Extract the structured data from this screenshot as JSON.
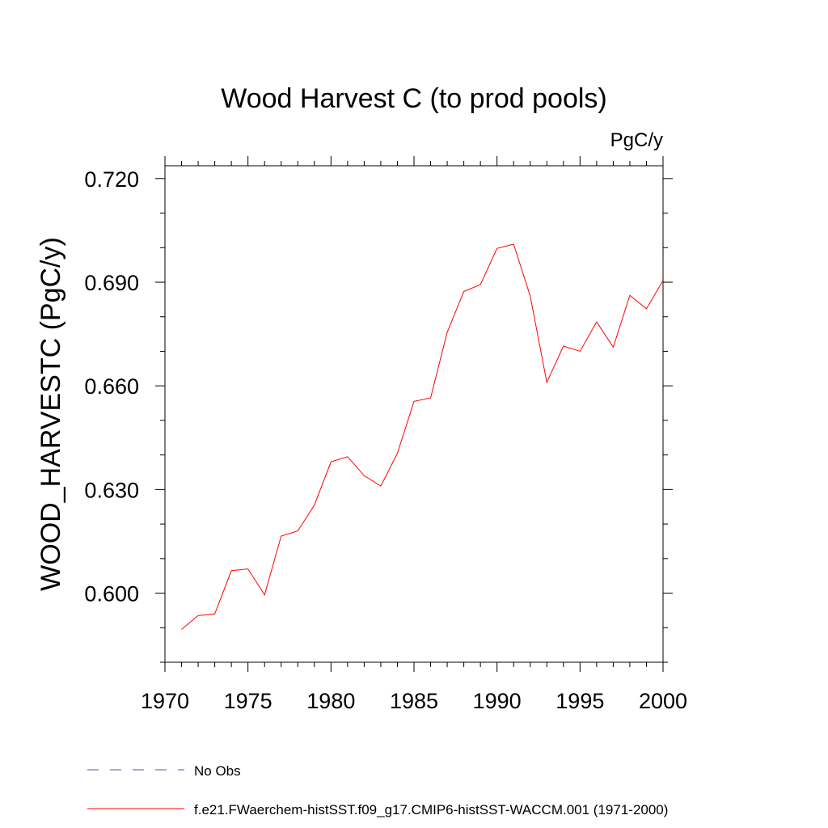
{
  "chart_data": {
    "type": "line",
    "title": "Wood Harvest C (to prod pools)",
    "units": "PgC/y",
    "ylabel": "WOOD_HARVESTC  (PgC/y)",
    "xlabel": "",
    "xlim": [
      1970,
      2000
    ],
    "ylim": [
      0.58,
      0.7237
    ],
    "x_ticks": [
      {
        "value": 1970,
        "label": "1970"
      },
      {
        "value": 1975,
        "label": "1975"
      },
      {
        "value": 1980,
        "label": "1980"
      },
      {
        "value": 1985,
        "label": "1985"
      },
      {
        "value": 1990,
        "label": "1990"
      },
      {
        "value": 1995,
        "label": "1995"
      },
      {
        "value": 2000,
        "label": "2000"
      }
    ],
    "y_ticks": [
      {
        "value": 0.6,
        "label": "0.600"
      },
      {
        "value": 0.63,
        "label": "0.630"
      },
      {
        "value": 0.66,
        "label": "0.660"
      },
      {
        "value": 0.69,
        "label": "0.690"
      },
      {
        "value": 0.72,
        "label": "0.720"
      }
    ],
    "x_minor_step": 1,
    "y_minor_step": 0.01,
    "grid": false,
    "legend_placement": "bottom-left",
    "x": [
      1971,
      1972,
      1973,
      1974,
      1975,
      1976,
      1977,
      1978,
      1979,
      1980,
      1981,
      1982,
      1983,
      1984,
      1985,
      1986,
      1987,
      1988,
      1989,
      1990,
      1991,
      1992,
      1993,
      1994,
      1995,
      1996,
      1997,
      1998,
      1999,
      2000
    ],
    "series": [
      {
        "name": "f.e21.FWaerchem-histSST.f09_g17.CMIP6-histSST-WACCM.001 (1971-2000)",
        "color": "#ff0000",
        "dash": false,
        "values": [
          0.5895,
          0.5935,
          0.594,
          0.6065,
          0.607,
          0.5995,
          0.6165,
          0.618,
          0.6255,
          0.638,
          0.6395,
          0.634,
          0.631,
          0.6405,
          0.6555,
          0.6565,
          0.6755,
          0.6873,
          0.6893,
          0.6998,
          0.701,
          0.686,
          0.661,
          0.6715,
          0.67,
          0.6785,
          0.6712,
          0.6862,
          0.6823,
          0.6905
        ]
      }
    ],
    "legend": [
      {
        "label": "No Obs",
        "color": "#5b4bb0",
        "dash": true
      },
      {
        "label": "f.e21.FWaerchem-histSST.f09_g17.CMIP6-histSST-WACCM.001 (1971-2000)",
        "color": "#ff0000",
        "dash": false
      }
    ]
  }
}
